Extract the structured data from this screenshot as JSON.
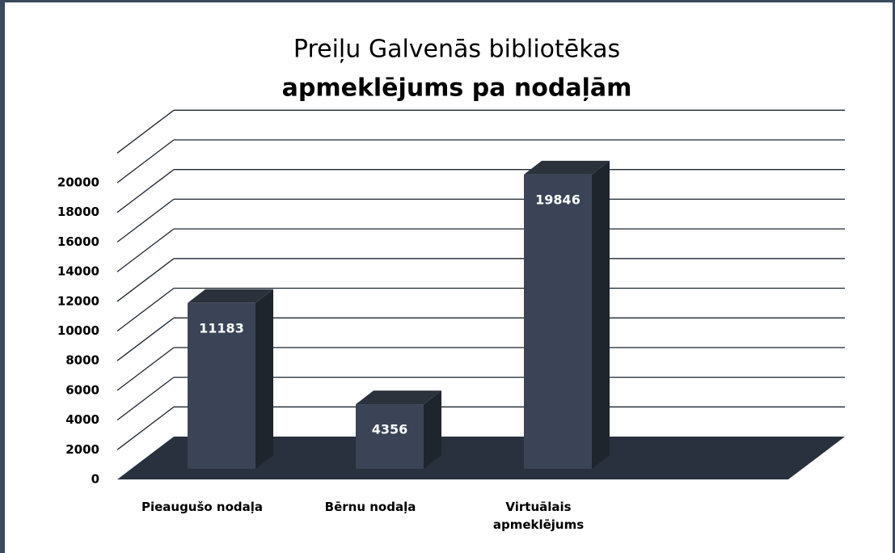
{
  "chart_data": {
    "type": "bar3d",
    "title": "Preiļu Galvenās bibliotēkas",
    "subtitle": "apmeklējums pa nodaļām",
    "categories": [
      "Pieaugušo nodaļa",
      "Bērnu nodaļa",
      "Virtuālais apmeklējums"
    ],
    "values": [
      11183,
      4356,
      19846
    ],
    "color": "#3a4456",
    "ylim": [
      0,
      20000
    ],
    "yticks": [
      0,
      2000,
      4000,
      6000,
      8000,
      10000,
      12000,
      14000,
      16000,
      18000,
      20000
    ],
    "grid": true
  }
}
